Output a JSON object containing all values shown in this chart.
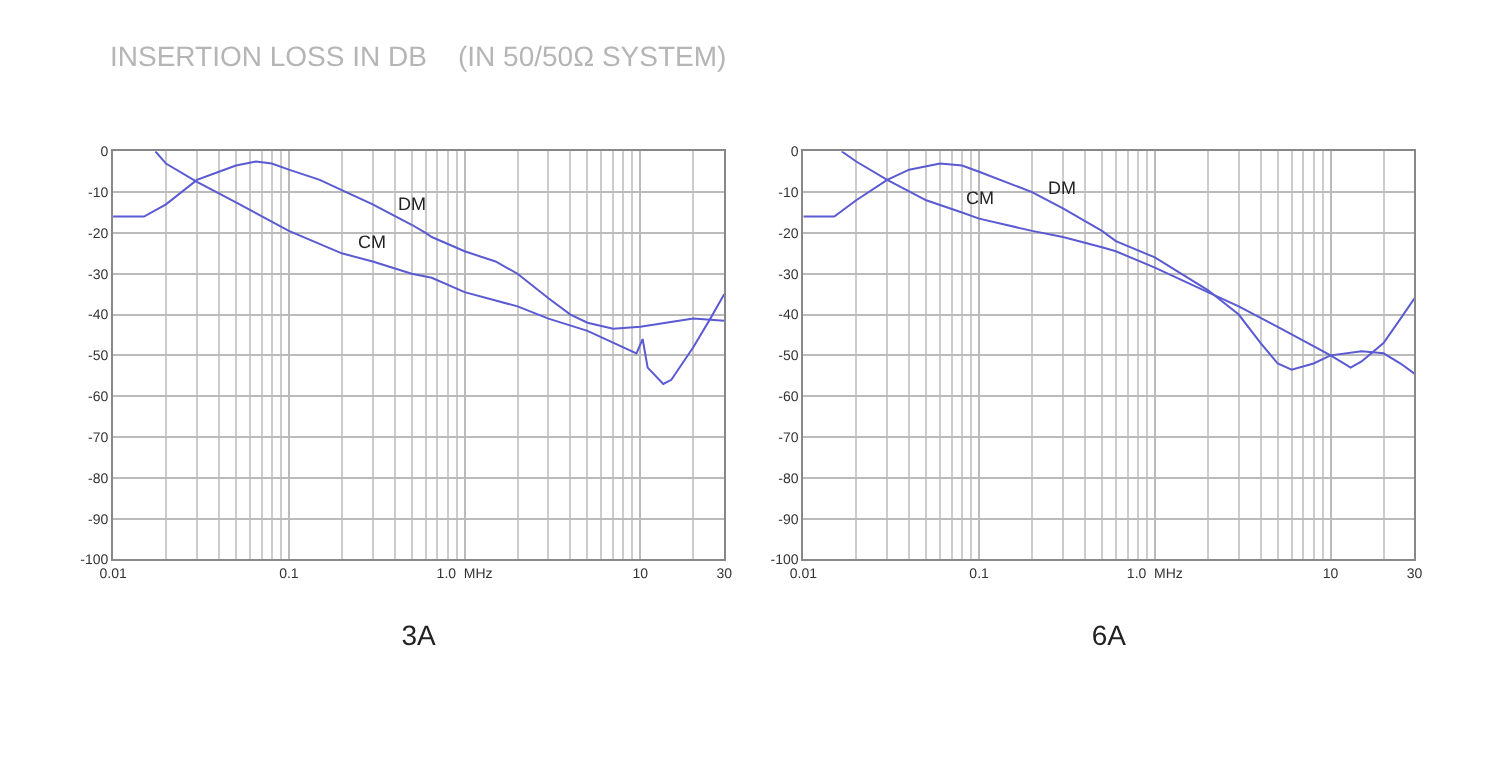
{
  "chart_data": [
    {
      "type": "line",
      "title": "INSERTION LOSS IN DB    (IN 50/50Ω SYSTEM)",
      "xlabel": "3A",
      "log": "x",
      "grid": true,
      "marker": "none",
      "line_style": "solid",
      "xlim": [
        0.01,
        30
      ],
      "xticks": [
        {
          "value": 0.01,
          "label": "0.01"
        },
        {
          "value": 0.1,
          "label": "0.1"
        },
        {
          "value": 1,
          "label": "1.0  MHz"
        },
        10,
        30
      ],
      "ylim": [
        -100,
        0
      ],
      "yticks": [
        -100,
        -90,
        -80,
        -70,
        -60,
        -50,
        -40,
        -30,
        -20,
        -10,
        0
      ],
      "annotations": [
        {
          "text": "DM",
          "x": 0.5,
          "y": -18
        },
        {
          "text": "CM",
          "x": 0.3,
          "y": -27
        }
      ],
      "series": [
        {
          "color": "#5a5ad2",
          "x": [
            0.01,
            0.015,
            0.02,
            0.03,
            0.04,
            0.05,
            0.065,
            0.08,
            0.1,
            0.15,
            0.2,
            0.3,
            0.5,
            0.6,
            0.65,
            1.0,
            1.5,
            2,
            3,
            4,
            5,
            7,
            10,
            20,
            30
          ],
          "values": [
            -16,
            -16,
            -13,
            -7,
            -5,
            -3.5,
            -2.5,
            -3,
            -4.5,
            -7,
            -9.5,
            -13,
            -18,
            -20,
            -21,
            -24.5,
            -27,
            -30,
            -36,
            -40,
            -42,
            -43.5,
            -43,
            -41,
            -41.5
          ]
        },
        {
          "color": "#5a5ad2",
          "x": [
            0.0174,
            0.02,
            0.03,
            0.05,
            0.1,
            0.2,
            0.3,
            0.5,
            0.65,
            1.0,
            2,
            3,
            5,
            9.5,
            10.3,
            11,
            13.5,
            15,
            20,
            25,
            30
          ],
          "values": [
            0,
            -3,
            -7.5,
            -12.5,
            -19.5,
            -25,
            -27,
            -30,
            -31,
            -34.5,
            -38,
            -41,
            -44,
            -49.5,
            -46,
            -53,
            -57,
            -56,
            -48,
            -41,
            -35
          ]
        }
      ]
    },
    {
      "type": "line",
      "xlabel": "6A",
      "log": "x",
      "grid": true,
      "marker": "none",
      "line_style": "solid",
      "xlim": [
        0.01,
        30
      ],
      "xticks": [
        {
          "value": 0.01,
          "label": "0.01"
        },
        {
          "value": 0.1,
          "label": "0.1"
        },
        {
          "value": 1,
          "label": "1.0  MHz"
        },
        10,
        30
      ],
      "ylim": [
        -100,
        0
      ],
      "yticks": [
        -100,
        -90,
        -80,
        -70,
        -60,
        -50,
        -40,
        -30,
        -20,
        -10,
        0
      ],
      "annotations": [
        {
          "text": "DM",
          "x": 0.3,
          "y": -14
        },
        {
          "text": "CM",
          "x": 0.1,
          "y": -16.5
        }
      ],
      "series": [
        {
          "color": "#5a5ad2",
          "x": [
            0.01,
            0.015,
            0.02,
            0.03,
            0.04,
            0.06,
            0.08,
            0.1,
            0.2,
            0.3,
            0.5,
            0.6,
            1,
            2,
            3,
            4,
            5,
            6,
            8,
            10,
            15,
            20,
            25,
            30
          ],
          "values": [
            -16,
            -16,
            -12,
            -7,
            -4.5,
            -3,
            -3.5,
            -5,
            -10,
            -14,
            -19.5,
            -22,
            -26,
            -34,
            -40,
            -47,
            -52,
            -53.5,
            -52,
            -50,
            -49,
            -49.5,
            -52,
            -54.5
          ]
        },
        {
          "color": "#5a5ad2",
          "x": [
            0.0165,
            0.02,
            0.03,
            0.05,
            0.08,
            0.1,
            0.2,
            0.3,
            0.5,
            0.6,
            1,
            2,
            3,
            5,
            10,
            13,
            15,
            20,
            25,
            30
          ],
          "values": [
            0,
            -2.5,
            -7,
            -12,
            -15,
            -16.5,
            -19.5,
            -21,
            -23.5,
            -24.5,
            -28.5,
            -34.5,
            -38,
            -43,
            -50,
            -53,
            -51.5,
            -47,
            -41,
            -36
          ]
        }
      ]
    }
  ]
}
